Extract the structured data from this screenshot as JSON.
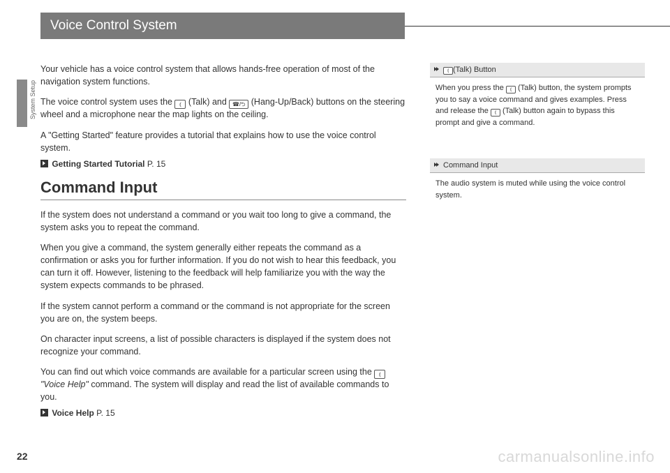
{
  "header": {
    "title": "Voice Control System"
  },
  "sidebar": {
    "label": "System Setup"
  },
  "main": {
    "p1": "Your vehicle has a voice control system that allows hands-free operation of most of the navigation system functions.",
    "p2a": "The voice control system uses the ",
    "p2b": " (Talk) and ",
    "p2c": " (Hang-Up/Back) buttons on the steering wheel and a microphone near the map lights on the ceiling.",
    "p3": "A \"Getting Started\" feature provides a tutorial that explains how to use the voice control system.",
    "xref1_label": "Getting Started Tutorial",
    "xref1_page": "P. 15",
    "heading": "Command Input",
    "p4": "If the system does not understand a command or you wait too long to give a command, the system asks you to repeat the command.",
    "p5": "When you give a command, the system generally either repeats the command as a confirmation or asks you for further information. If you do not wish to hear this feedback, you can turn it off. However, listening to the feedback will help familiarize you with the way the system expects commands to be phrased.",
    "p6": "If the system cannot perform a command or the command is not appropriate for the screen you are on, the system beeps.",
    "p7": "On character input screens, a list of possible characters is displayed if the system does not recognize your command.",
    "p8a": "You can find out which voice commands are available for a particular screen using the ",
    "p8b": " \"Voice Help\"",
    "p8c": " command. The system will display and read the list of available commands to you.",
    "xref2_label": "Voice Help",
    "xref2_page": "P. 15"
  },
  "side": {
    "box1_title": " (Talk) Button",
    "box1_a": "When you press the ",
    "box1_b": " (Talk) button, the system prompts you to say a voice command and gives examples. Press and release the ",
    "box1_c": " (Talk) button again to bypass this prompt and give a command.",
    "box2_title": "Command Input",
    "box2_body": "The audio system is muted while using the voice control system."
  },
  "icons": {
    "talk": "⦅",
    "hangup": "☎/⮌"
  },
  "page_number": "22",
  "watermark": "carmanualsonline.info"
}
